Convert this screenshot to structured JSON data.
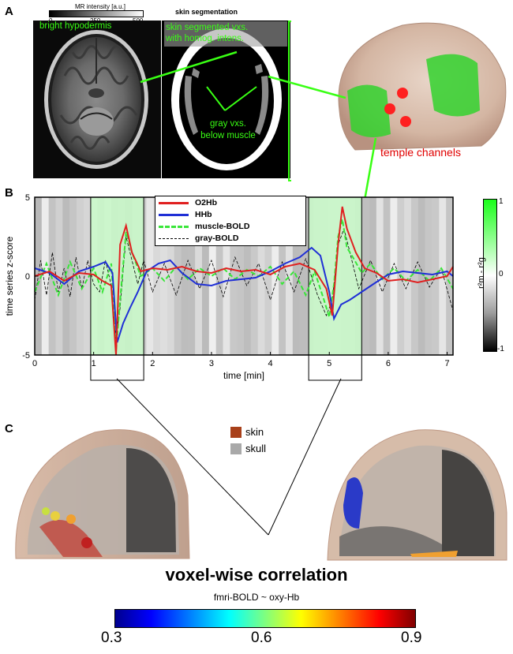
{
  "panel_a": {
    "letter": "A",
    "mr_colorbar": {
      "title": "MR intensity [a.u.]",
      "ticks": [
        "0",
        "250",
        "500"
      ]
    },
    "seg_title": "skin segmentation",
    "label_hypodermis": "bright hypodermis",
    "label_skin_vxs_1": "skin segmented vxs.",
    "label_skin_vxs_2": "with homog. intens.",
    "label_gray_1": "gray vxs.",
    "label_gray_2": "below muscle",
    "label_channels": "temple channels"
  },
  "panel_b": {
    "letter": "B",
    "colorbar": {
      "label": "r²m - r²g",
      "ticks": [
        "1",
        "0",
        "-1"
      ]
    },
    "legend": [
      {
        "name": "O2Hb",
        "color": "#e02020",
        "dash": "solid"
      },
      {
        "name": "HHb",
        "color": "#1f2fd6",
        "dash": "solid"
      },
      {
        "name": "muscle-BOLD",
        "color": "#39e639",
        "dash": "dashed"
      },
      {
        "name": "gray-BOLD",
        "color": "#000000",
        "dash": "dashed"
      }
    ]
  },
  "panel_c": {
    "letter": "C",
    "legend": [
      {
        "name": "skin",
        "color": "#a8401a"
      },
      {
        "name": "skull",
        "color": "#a9a9a9"
      }
    ],
    "title": "voxel-wise correlation",
    "subtitle": "fmri-BOLD ~ oxy-Hb",
    "colorbar_ticks": [
      "0.3",
      "0.6",
      "0.9"
    ]
  },
  "chart_data": {
    "type": "line",
    "xlabel": "time [min]",
    "ylabel": "time series z-score",
    "xlim": [
      0,
      7.1
    ],
    "ylim": [
      -5,
      5
    ],
    "xticks": [
      0,
      1,
      2,
      3,
      4,
      5,
      6,
      7
    ],
    "yticks": [
      5,
      0,
      -5
    ],
    "highlight_windows": [
      [
        0.95,
        1.85
      ],
      [
        4.65,
        5.55
      ]
    ],
    "series": [
      {
        "name": "O2Hb",
        "color": "#e02020",
        "dash": "solid",
        "x": [
          0,
          0.25,
          0.5,
          0.75,
          1.0,
          1.15,
          1.3,
          1.38,
          1.45,
          1.55,
          1.65,
          1.8,
          2.0,
          2.25,
          2.5,
          2.75,
          3.0,
          3.25,
          3.5,
          3.75,
          4.0,
          4.25,
          4.5,
          4.75,
          4.95,
          5.05,
          5.15,
          5.22,
          5.3,
          5.45,
          5.6,
          5.8,
          6.0,
          6.25,
          6.5,
          6.75,
          7.0,
          7.1
        ],
        "y": [
          0,
          0.3,
          -0.3,
          0.2,
          0.1,
          -0.3,
          -0.6,
          -5,
          2.0,
          3.2,
          1.5,
          0.3,
          0.5,
          0.4,
          0.6,
          0.3,
          0.2,
          0.5,
          0.3,
          0.4,
          0.1,
          0.6,
          0.8,
          0.4,
          -0.8,
          -2.5,
          2.0,
          4.4,
          3.0,
          1.5,
          0.5,
          0.2,
          -0.3,
          -0.2,
          -0.4,
          -0.2,
          0,
          0.6
        ]
      },
      {
        "name": "HHb",
        "color": "#1f2fd6",
        "dash": "solid",
        "x": [
          0,
          0.25,
          0.5,
          0.75,
          1.0,
          1.2,
          1.32,
          1.4,
          1.5,
          1.62,
          1.75,
          1.9,
          2.1,
          2.3,
          2.5,
          2.75,
          3.0,
          3.25,
          3.5,
          3.75,
          4.0,
          4.25,
          4.5,
          4.7,
          4.85,
          5.0,
          5.08,
          5.2,
          5.35,
          5.55,
          5.75,
          6.0,
          6.25,
          6.5,
          6.75,
          7.0,
          7.1
        ],
        "y": [
          0.5,
          0.2,
          -0.5,
          0.3,
          0.6,
          0.9,
          0.2,
          -4.2,
          -3.0,
          -2.0,
          -1.0,
          0.3,
          0.8,
          1.0,
          0.2,
          -0.5,
          -0.6,
          -0.3,
          -0.2,
          -0.1,
          0.3,
          0.8,
          1.2,
          1.8,
          1.3,
          -1.0,
          -2.7,
          -1.8,
          -1.5,
          -1.0,
          -0.5,
          0.1,
          0.3,
          0.2,
          0.1,
          0.3,
          0
        ]
      },
      {
        "name": "muscle-BOLD",
        "color": "#39e639",
        "dash": "dashed",
        "x": [
          0,
          0.2,
          0.4,
          0.6,
          0.8,
          1.0,
          1.15,
          1.3,
          1.38,
          1.45,
          1.55,
          1.65,
          1.8,
          2.0,
          2.2,
          2.4,
          2.6,
          2.8,
          3.0,
          3.2,
          3.4,
          3.6,
          3.8,
          4.0,
          4.2,
          4.4,
          4.6,
          4.75,
          4.9,
          5.0,
          5.08,
          5.15,
          5.22,
          5.3,
          5.4,
          5.55,
          5.7,
          5.9,
          6.1,
          6.3,
          6.5,
          6.7,
          6.9,
          7.1
        ],
        "y": [
          -1.0,
          0.8,
          -1.2,
          0.9,
          -0.8,
          0.5,
          -1.0,
          0.8,
          -4.8,
          -1.5,
          2.8,
          1.5,
          0,
          0.5,
          -0.3,
          0.6,
          -0.2,
          0.5,
          0,
          0.5,
          -0.2,
          0.4,
          0,
          0.6,
          -0.5,
          0.3,
          -1.2,
          0.3,
          -1.4,
          -2.6,
          -0.5,
          2.5,
          3.6,
          1.8,
          1.2,
          0.2,
          0.8,
          -0.2,
          0.5,
          -0.3,
          0.4,
          -0.3,
          0.5,
          -0.8
        ]
      },
      {
        "name": "gray-BOLD",
        "color": "#000000",
        "dash": "dashed",
        "x": [
          0,
          0.1,
          0.2,
          0.3,
          0.4,
          0.5,
          0.6,
          0.7,
          0.8,
          0.9,
          1.0,
          1.1,
          1.2,
          1.3,
          1.38,
          1.45,
          1.55,
          1.65,
          1.75,
          1.85,
          2.0,
          2.2,
          2.4,
          2.6,
          2.8,
          3.0,
          3.2,
          3.4,
          3.6,
          3.8,
          4.0,
          4.2,
          4.4,
          4.6,
          4.8,
          4.95,
          5.05,
          5.15,
          5.25,
          5.35,
          5.5,
          5.7,
          5.9,
          6.1,
          6.3,
          6.5,
          6.7,
          6.9,
          7.1
        ],
        "y": [
          -1.5,
          1.0,
          -1.2,
          1.5,
          -1.0,
          0.5,
          -1.3,
          1.2,
          -0.8,
          1.0,
          -0.5,
          -1.0,
          1.0,
          -0.6,
          -4.0,
          -2.0,
          2.5,
          1.0,
          -0.5,
          1.0,
          -1.0,
          0.8,
          -1.2,
          1.0,
          -0.8,
          1.0,
          -1.3,
          1.2,
          -0.6,
          0.8,
          -1.5,
          0.9,
          -1.0,
          1.1,
          -1.2,
          -2.5,
          -1.5,
          2.0,
          3.0,
          1.5,
          -0.8,
          1.0,
          -1.0,
          0.8,
          -0.8,
          0.9,
          -0.7,
          0.5,
          -2.2
        ]
      }
    ]
  }
}
